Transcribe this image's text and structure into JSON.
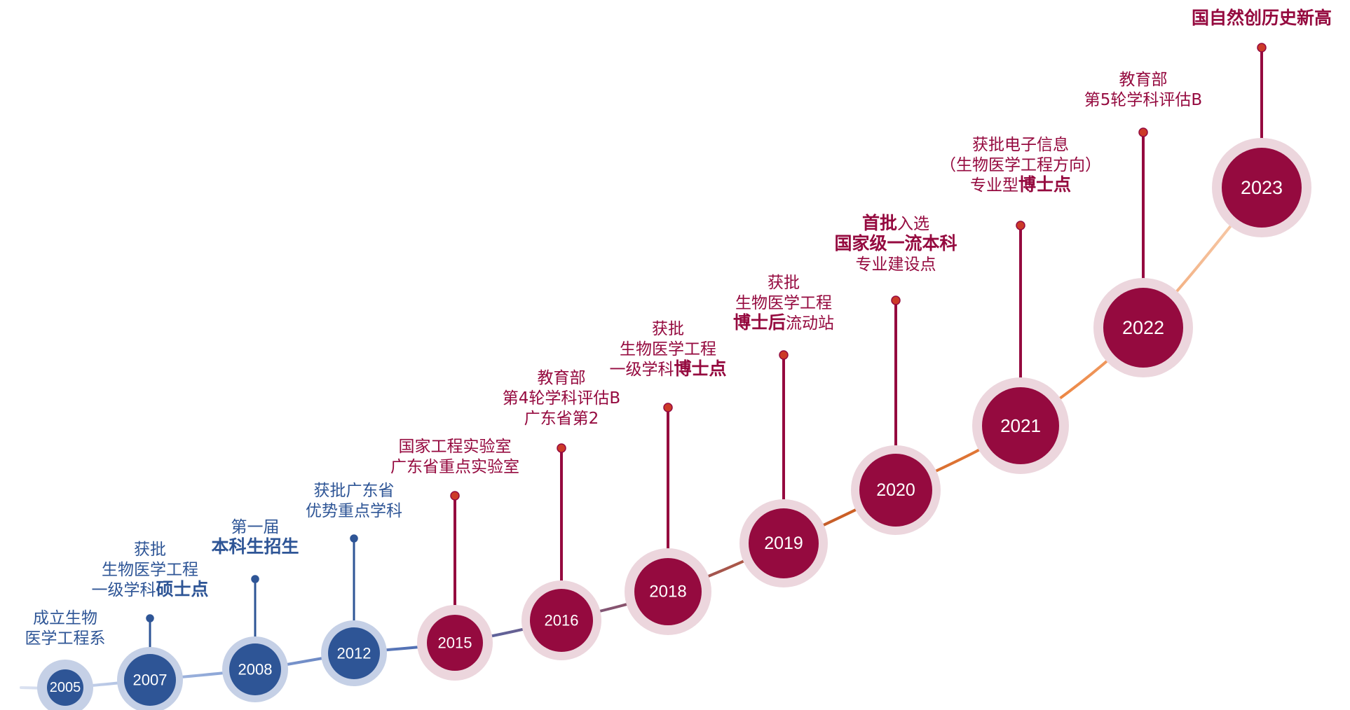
{
  "timeline": {
    "colors": {
      "blue": "#2e5596",
      "blue_halo": "#c5d0e6",
      "crimson": "#950a3f",
      "crimson_halo": "#ecd6dd",
      "stem_dot": "#cc3a28",
      "curve_gradient": [
        "#dbe2f1",
        "#8aa4d6",
        "#4b6ab0",
        "#8e5066",
        "#cc5f24",
        "#ec8440",
        "#f8d2b5"
      ]
    },
    "milestones": [
      {
        "year": "2005",
        "theme": "blue",
        "label_lines": [
          [
            {
              "t": "成立生物",
              "b": false
            }
          ],
          [
            {
              "t": "医学工程系",
              "b": false
            }
          ]
        ]
      },
      {
        "year": "2007",
        "theme": "blue",
        "label_lines": [
          [
            {
              "t": "获批",
              "b": false
            }
          ],
          [
            {
              "t": "生物医学工程",
              "b": false
            }
          ],
          [
            {
              "t": "一级学科",
              "b": false
            },
            {
              "t": "硕士点",
              "b": true
            }
          ]
        ]
      },
      {
        "year": "2008",
        "theme": "blue",
        "label_lines": [
          [
            {
              "t": "第一届",
              "b": false
            }
          ],
          [
            {
              "t": "本科生招生",
              "b": true
            }
          ]
        ]
      },
      {
        "year": "2012",
        "theme": "blue",
        "label_lines": [
          [
            {
              "t": "获批广东省",
              "b": false
            }
          ],
          [
            {
              "t": "优势重点学科",
              "b": false
            }
          ]
        ]
      },
      {
        "year": "2015",
        "theme": "crimson",
        "label_lines": [
          [
            {
              "t": "国家工程实验室",
              "b": false
            }
          ],
          [
            {
              "t": "广东省重点实验室",
              "b": false
            }
          ]
        ]
      },
      {
        "year": "2016",
        "theme": "crimson",
        "label_lines": [
          [
            {
              "t": "教育部",
              "b": false
            }
          ],
          [
            {
              "t": "第4轮学科评估B",
              "b": false
            }
          ],
          [
            {
              "t": "广东省第2",
              "b": false
            }
          ]
        ]
      },
      {
        "year": "2018",
        "theme": "crimson",
        "label_lines": [
          [
            {
              "t": "获批",
              "b": false
            }
          ],
          [
            {
              "t": "生物医学工程",
              "b": false
            }
          ],
          [
            {
              "t": "一级学科",
              "b": false
            },
            {
              "t": "博士点",
              "b": true
            }
          ]
        ]
      },
      {
        "year": "2019",
        "theme": "crimson",
        "label_lines": [
          [
            {
              "t": "获批",
              "b": false
            }
          ],
          [
            {
              "t": "生物医学工程",
              "b": false
            }
          ],
          [
            {
              "t": "博士后",
              "b": true
            },
            {
              "t": "流动站",
              "b": false
            }
          ]
        ]
      },
      {
        "year": "2020",
        "theme": "crimson",
        "label_lines": [
          [
            {
              "t": "首批",
              "b": true
            },
            {
              "t": "入选",
              "b": false
            }
          ],
          [
            {
              "t": "国家级一流本科",
              "b": true
            }
          ],
          [
            {
              "t": "专业建设点",
              "b": false
            }
          ]
        ]
      },
      {
        "year": "2021",
        "theme": "crimson",
        "label_lines": [
          [
            {
              "t": "获批电子信息",
              "b": false
            }
          ],
          [
            {
              "t": "（生物医学工程方向）",
              "b": false
            }
          ],
          [
            {
              "t": "专业型",
              "b": false
            },
            {
              "t": "博士点",
              "b": true
            }
          ]
        ]
      },
      {
        "year": "2022",
        "theme": "crimson",
        "label_lines": [
          [
            {
              "t": "教育部",
              "b": false
            }
          ],
          [
            {
              "t": "第5轮学科评估B",
              "b": false
            }
          ]
        ]
      },
      {
        "year": "2023",
        "theme": "crimson",
        "label_lines": [
          [
            {
              "t": "国自然创历史新高",
              "b": true
            }
          ]
        ]
      }
    ]
  }
}
